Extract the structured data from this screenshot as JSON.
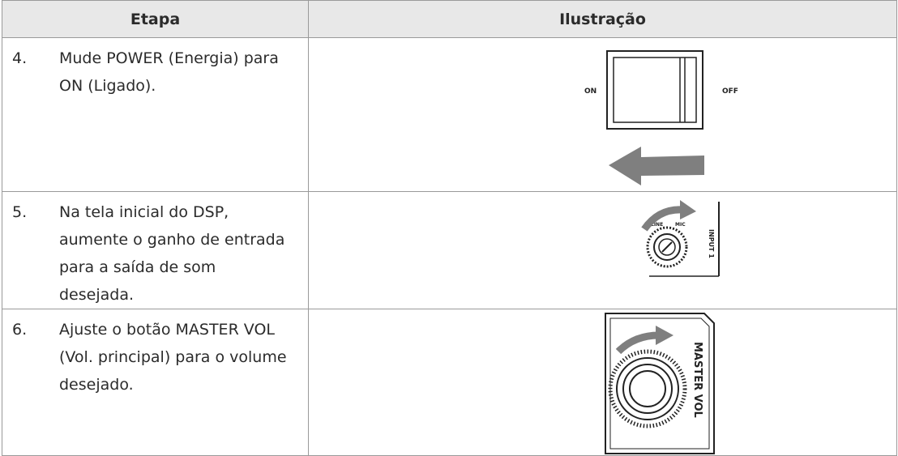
{
  "table": {
    "header": [
      "Etapa",
      "Ilustração"
    ],
    "rows": [
      {
        "step": "4.",
        "text": "Mude POWER (Energia) para ON (Ligado).",
        "labels": [
          "ON",
          "OFF"
        ]
      },
      {
        "step": "5.",
        "text": "Na tela inicial do DSP, aumente o ganho de entrada para a saída de som desejada.",
        "labels": [
          "LINE",
          "MIC",
          "INPUT 1"
        ]
      },
      {
        "step": "6.",
        "text": "Ajuste o botão MASTER VOL (Vol. principal) para o volume desejado.",
        "labels": [
          "MASTER VOL"
        ]
      }
    ]
  }
}
